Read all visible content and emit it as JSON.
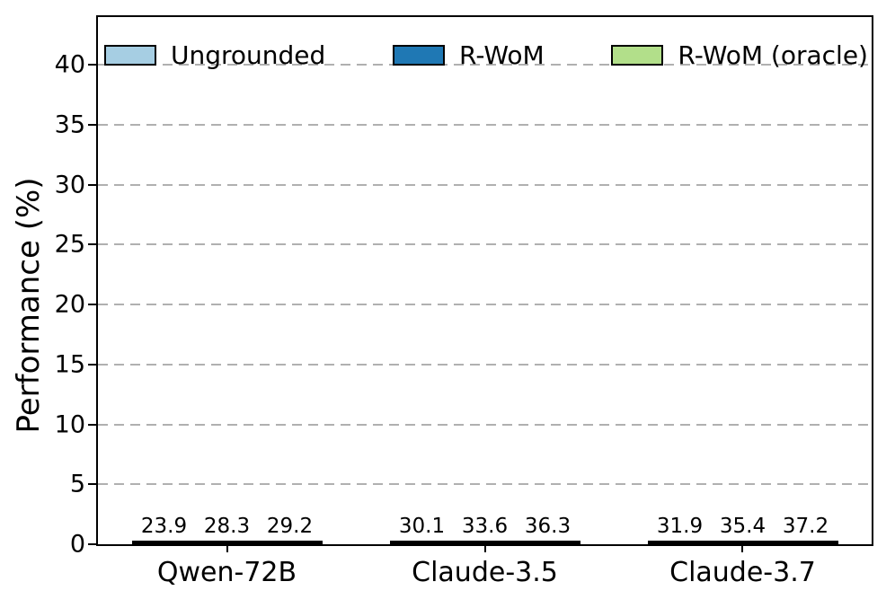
{
  "chart_data": {
    "type": "bar",
    "title": "",
    "xlabel": "",
    "ylabel": "Performance (%)",
    "categories": [
      "Qwen-72B",
      "Claude-3.5",
      "Claude-3.7"
    ],
    "series": [
      {
        "name": "Ungrounded",
        "color": "#a6cee3",
        "values": [
          23.9,
          30.1,
          31.9
        ]
      },
      {
        "name": "R-WoM",
        "color": "#1f78b4",
        "values": [
          28.3,
          33.6,
          35.4
        ]
      },
      {
        "name": "R-WoM (oracle)",
        "color": "#b2df8a",
        "values": [
          29.2,
          36.3,
          37.2
        ]
      }
    ],
    "ylim": [
      0,
      44
    ],
    "yticks": [
      0,
      5,
      10,
      15,
      20,
      25,
      30,
      35,
      40
    ],
    "grid": "horizontal-dashed",
    "grid_color": "#b0b0b0",
    "bar_edge_color": "#000000",
    "legend": {
      "position": "top-inside",
      "orientation": "horizontal",
      "frame": false
    }
  }
}
